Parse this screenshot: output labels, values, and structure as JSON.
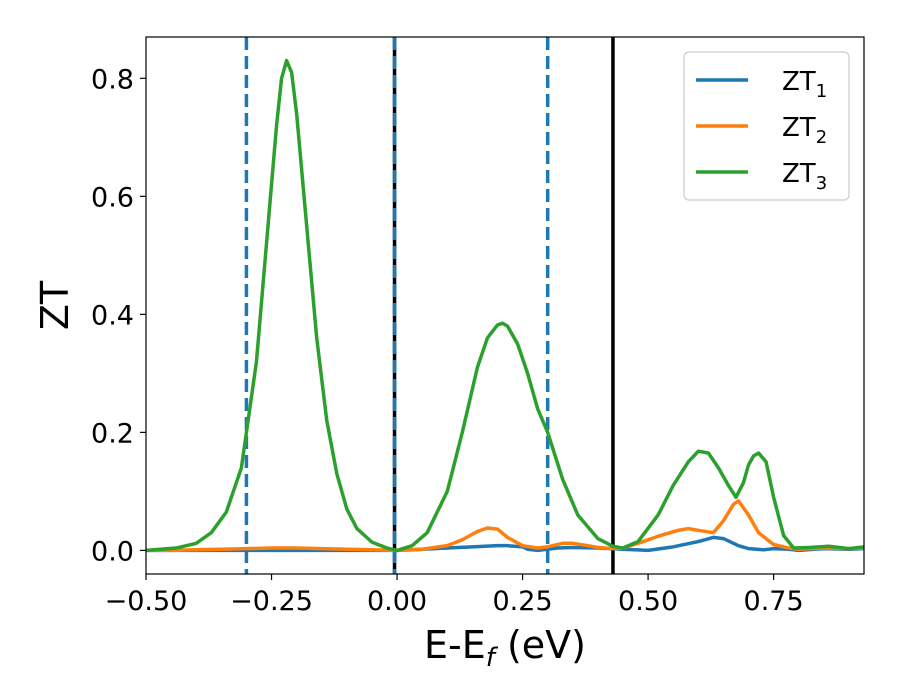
{
  "chart_data": {
    "type": "line",
    "title": "",
    "xlabel": "E-E",
    "xlabel_sub": "f",
    "xlabel_suffix": " (eV)",
    "ylabel": "ZT",
    "xlim": [
      -0.5,
      0.93
    ],
    "ylim": [
      -0.04,
      0.87
    ],
    "x_ticks": [
      -0.5,
      -0.25,
      0.0,
      0.25,
      0.5,
      0.75
    ],
    "x_tick_labels": [
      "−0.50",
      "−0.25",
      "0.00",
      "0.25",
      "0.50",
      "0.75"
    ],
    "y_ticks": [
      0.0,
      0.2,
      0.4,
      0.6,
      0.8
    ],
    "y_tick_labels": [
      "0.0",
      "0.2",
      "0.4",
      "0.6",
      "0.8"
    ],
    "grid": false,
    "legend_position": "top-right",
    "vertical_lines": [
      {
        "x": -0.3,
        "style": "dashed",
        "color": "#1f77b4"
      },
      {
        "x": -0.005,
        "style": "solid",
        "color": "#000000"
      },
      {
        "x": -0.005,
        "style": "dashed",
        "color": "#1f77b4"
      },
      {
        "x": 0.3,
        "style": "dashed",
        "color": "#1f77b4"
      },
      {
        "x": 0.43,
        "style": "solid",
        "color": "#000000"
      }
    ],
    "series": [
      {
        "name": "ZT",
        "name_sub": "1",
        "color": "#1f77b4",
        "x": [
          -0.5,
          -0.45,
          -0.4,
          -0.35,
          -0.3,
          -0.25,
          -0.2,
          -0.15,
          -0.1,
          -0.05,
          0.0,
          0.05,
          0.1,
          0.15,
          0.2,
          0.22,
          0.25,
          0.26,
          0.28,
          0.3,
          0.32,
          0.35,
          0.4,
          0.45,
          0.5,
          0.55,
          0.6,
          0.63,
          0.65,
          0.68,
          0.7,
          0.73,
          0.75,
          0.78,
          0.8,
          0.85,
          0.9,
          0.93
        ],
        "y": [
          0.0,
          0.0,
          0.0,
          0.0,
          0.0,
          0.0,
          0.0,
          0.0,
          0.0,
          0.0,
          0.0,
          0.002,
          0.004,
          0.006,
          0.008,
          0.008,
          0.006,
          0.002,
          0.0,
          0.002,
          0.004,
          0.005,
          0.004,
          0.002,
          0.0,
          0.006,
          0.015,
          0.022,
          0.02,
          0.008,
          0.003,
          0.001,
          0.003,
          0.002,
          0.0,
          0.003,
          0.002,
          0.003
        ]
      },
      {
        "name": "ZT",
        "name_sub": "2",
        "color": "#ff7f0e",
        "x": [
          -0.5,
          -0.45,
          -0.4,
          -0.35,
          -0.3,
          -0.25,
          -0.2,
          -0.15,
          -0.1,
          -0.05,
          0.0,
          0.05,
          0.1,
          0.13,
          0.16,
          0.18,
          0.2,
          0.22,
          0.25,
          0.28,
          0.3,
          0.33,
          0.35,
          0.38,
          0.4,
          0.43,
          0.45,
          0.48,
          0.52,
          0.56,
          0.58,
          0.6,
          0.63,
          0.65,
          0.67,
          0.68,
          0.7,
          0.72,
          0.75,
          0.78,
          0.8,
          0.85,
          0.9,
          0.93
        ],
        "y": [
          0.0,
          0.0,
          0.001,
          0.002,
          0.003,
          0.004,
          0.004,
          0.003,
          0.002,
          0.001,
          0.0,
          0.002,
          0.008,
          0.018,
          0.032,
          0.038,
          0.036,
          0.022,
          0.008,
          0.004,
          0.006,
          0.012,
          0.012,
          0.008,
          0.005,
          0.003,
          0.004,
          0.012,
          0.024,
          0.034,
          0.037,
          0.034,
          0.03,
          0.05,
          0.078,
          0.084,
          0.06,
          0.03,
          0.01,
          0.004,
          0.002,
          0.004,
          0.003,
          0.004
        ]
      },
      {
        "name": "ZT",
        "name_sub": "3",
        "color": "#2ca02c",
        "x": [
          -0.5,
          -0.44,
          -0.4,
          -0.37,
          -0.34,
          -0.31,
          -0.28,
          -0.26,
          -0.24,
          -0.23,
          -0.22,
          -0.21,
          -0.2,
          -0.18,
          -0.16,
          -0.14,
          -0.12,
          -0.1,
          -0.08,
          -0.05,
          -0.02,
          0.0,
          0.03,
          0.06,
          0.1,
          0.13,
          0.16,
          0.18,
          0.2,
          0.21,
          0.22,
          0.24,
          0.26,
          0.28,
          0.3,
          0.33,
          0.36,
          0.4,
          0.43,
          0.45,
          0.48,
          0.52,
          0.55,
          0.58,
          0.6,
          0.62,
          0.64,
          0.66,
          0.675,
          0.69,
          0.7,
          0.71,
          0.72,
          0.735,
          0.75,
          0.77,
          0.79,
          0.82,
          0.86,
          0.9,
          0.93
        ],
        "y": [
          0.0,
          0.004,
          0.012,
          0.03,
          0.065,
          0.14,
          0.32,
          0.52,
          0.72,
          0.8,
          0.83,
          0.81,
          0.74,
          0.55,
          0.36,
          0.22,
          0.13,
          0.07,
          0.037,
          0.014,
          0.004,
          0.0,
          0.008,
          0.03,
          0.1,
          0.2,
          0.31,
          0.36,
          0.382,
          0.385,
          0.38,
          0.35,
          0.3,
          0.24,
          0.2,
          0.12,
          0.06,
          0.02,
          0.007,
          0.004,
          0.015,
          0.06,
          0.11,
          0.15,
          0.168,
          0.165,
          0.14,
          0.11,
          0.09,
          0.115,
          0.145,
          0.16,
          0.165,
          0.15,
          0.09,
          0.025,
          0.004,
          0.005,
          0.007,
          0.003,
          0.006
        ]
      }
    ]
  }
}
